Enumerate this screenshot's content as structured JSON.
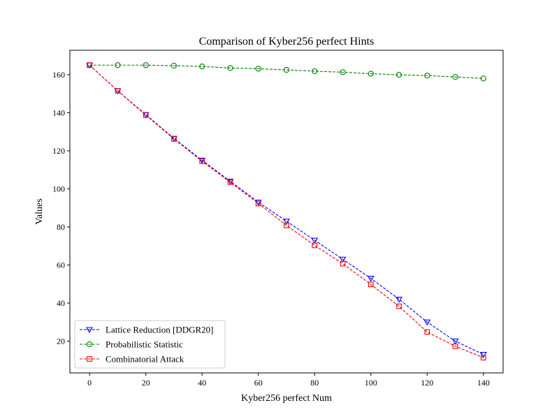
{
  "chart_data": {
    "type": "line",
    "title": "Comparison of Kyber256 perfect Hints",
    "xlabel": "Kyber256 perfect Num",
    "ylabel": "Values",
    "xlim": [
      -7,
      147
    ],
    "ylim": [
      3.3,
      172.8
    ],
    "xticks": [
      0,
      20,
      40,
      60,
      80,
      100,
      120,
      140
    ],
    "yticks": [
      20,
      40,
      60,
      80,
      100,
      120,
      140,
      160
    ],
    "grid": false,
    "legend_position": "lower-left",
    "x": [
      0,
      10,
      20,
      30,
      40,
      50,
      60,
      70,
      80,
      90,
      100,
      110,
      120,
      130,
      140
    ],
    "series": [
      {
        "name": "Lattice Reduction [DDGR20]",
        "color": "#0000ff",
        "marker": "triangle-down",
        "linestyle": "dashed",
        "values": [
          165,
          151.5,
          139,
          126.5,
          115,
          104,
          93,
          83,
          73,
          63,
          53,
          42,
          30,
          20,
          13
        ]
      },
      {
        "name": "Probabilistic Statistic",
        "color": "#008000",
        "marker": "circle",
        "linestyle": "dashed",
        "values": [
          165,
          165,
          165,
          164.7,
          164.3,
          163.5,
          163.1,
          162.5,
          161.8,
          161.3,
          160.5,
          159.9,
          159.5,
          158.8,
          158
        ]
      },
      {
        "name": "Combinatorial Attack",
        "color": "#ff0000",
        "marker": "square",
        "linestyle": "dashed",
        "values": [
          165,
          151.5,
          138.7,
          126.2,
          114.5,
          103.5,
          92.3,
          80.8,
          70.3,
          60.7,
          49.8,
          38.3,
          24.8,
          17.3,
          11.3
        ]
      }
    ]
  }
}
